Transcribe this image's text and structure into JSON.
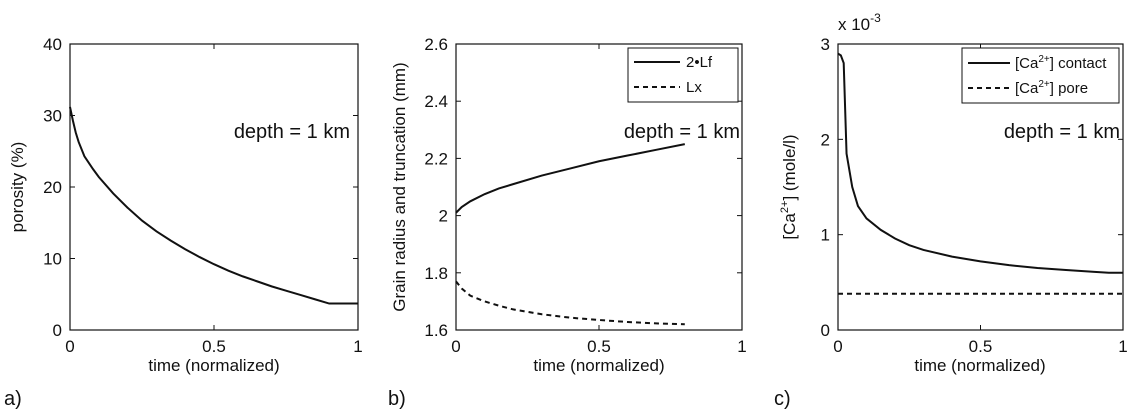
{
  "chart_data": [
    {
      "type": "line",
      "panel_label": "a)",
      "xlabel": "time (normalized)",
      "ylabel": "porosity (%)",
      "xlim": [
        0,
        1
      ],
      "ylim": [
        0,
        40
      ],
      "xticks": [
        0,
        0.5,
        1
      ],
      "xtick_labels": [
        "0",
        "0.5",
        "1"
      ],
      "yticks": [
        0,
        10,
        20,
        30,
        40
      ],
      "ytick_labels": [
        "0",
        "10",
        "20",
        "30",
        "40"
      ],
      "annotation": "depth = 1 km",
      "grid": false,
      "series": [
        {
          "style": "solid",
          "color": "#111111",
          "x": [
            0,
            0.01,
            0.02,
            0.03,
            0.05,
            0.08,
            0.1,
            0.15,
            0.2,
            0.25,
            0.3,
            0.35,
            0.4,
            0.45,
            0.5,
            0.55,
            0.6,
            0.65,
            0.7,
            0.75,
            0.8,
            0.85,
            0.9,
            0.95,
            1.0
          ],
          "y": [
            31.2,
            29.3,
            27.6,
            26.3,
            24.3,
            22.5,
            21.4,
            19.1,
            17.1,
            15.3,
            13.8,
            12.5,
            11.3,
            10.2,
            9.2,
            8.3,
            7.5,
            6.8,
            6.1,
            5.5,
            4.9,
            4.3,
            3.7,
            3.7,
            3.7
          ]
        }
      ]
    },
    {
      "type": "line",
      "panel_label": "b)",
      "xlabel": "time (normalized)",
      "ylabel": "Grain radius and truncation (mm)",
      "xlim": [
        0,
        1
      ],
      "ylim": [
        1.6,
        2.6
      ],
      "xticks": [
        0,
        0.5,
        1
      ],
      "xtick_labels": [
        "0",
        "0.5",
        "1"
      ],
      "yticks": [
        1.6,
        1.8,
        2.0,
        2.2,
        2.4,
        2.6
      ],
      "ytick_labels": [
        "1.6",
        "1.8",
        "2",
        "2.2",
        "2.4",
        "2.6"
      ],
      "annotation": "depth = 1 km",
      "legend_position": "top-right",
      "grid": false,
      "series": [
        {
          "name": "2•Lf",
          "style": "solid",
          "color": "#111111",
          "x": [
            0,
            0.02,
            0.05,
            0.1,
            0.15,
            0.2,
            0.3,
            0.4,
            0.5,
            0.6,
            0.7,
            0.8
          ],
          "y": [
            2.01,
            2.03,
            2.05,
            2.075,
            2.095,
            2.11,
            2.14,
            2.165,
            2.19,
            2.21,
            2.23,
            2.25
          ]
        },
        {
          "name": "Lx",
          "style": "dashed",
          "color": "#111111",
          "x": [
            0,
            0.02,
            0.05,
            0.1,
            0.15,
            0.2,
            0.3,
            0.4,
            0.5,
            0.6,
            0.7,
            0.8
          ],
          "y": [
            1.77,
            1.745,
            1.72,
            1.7,
            1.685,
            1.672,
            1.655,
            1.643,
            1.635,
            1.628,
            1.623,
            1.62
          ]
        }
      ]
    },
    {
      "type": "line",
      "panel_label": "c)",
      "xlabel": "time (normalized)",
      "ylabel_main": "[Ca",
      "ylabel_sup": "2+",
      "ylabel_tail": "] (mole/l)",
      "scale_prefix": "x 10",
      "scale_exp": "-3",
      "xlim": [
        0,
        1
      ],
      "ylim": [
        0,
        3
      ],
      "xticks": [
        0,
        0.5,
        1
      ],
      "xtick_labels": [
        "0",
        "0.5",
        "1"
      ],
      "yticks": [
        0,
        1,
        2,
        3
      ],
      "ytick_labels": [
        "0",
        "1",
        "2",
        "3"
      ],
      "annotation": "depth = 1 km",
      "legend_position": "top-right",
      "grid": false,
      "series": [
        {
          "name_main": "[Ca",
          "name_sup": "2+",
          "name_tail": "] contact",
          "style": "solid",
          "color": "#111111",
          "x": [
            0,
            0.01,
            0.02,
            0.03,
            0.05,
            0.07,
            0.1,
            0.15,
            0.2,
            0.25,
            0.3,
            0.4,
            0.5,
            0.6,
            0.7,
            0.8,
            0.9,
            0.95,
            1.0
          ],
          "y": [
            2.9,
            2.88,
            2.8,
            1.85,
            1.5,
            1.3,
            1.17,
            1.05,
            0.96,
            0.89,
            0.84,
            0.77,
            0.72,
            0.68,
            0.65,
            0.63,
            0.61,
            0.6,
            0.6
          ]
        },
        {
          "name_main": "[Ca",
          "name_sup": "2+",
          "name_tail": "] pore",
          "style": "dashed",
          "color": "#111111",
          "x": [
            0,
            1
          ],
          "y": [
            0.38,
            0.38
          ]
        }
      ]
    }
  ]
}
